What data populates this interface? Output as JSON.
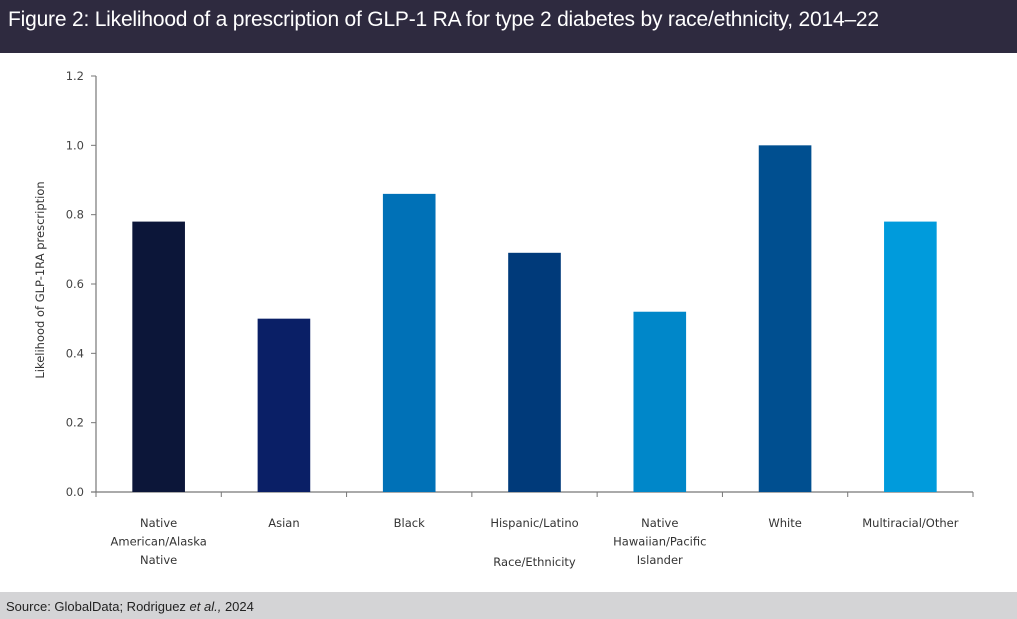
{
  "header": {
    "title": "Figure 2: Likelihood of a prescription of GLP-1 RA for type 2 diabetes by race/ethnicity, 2014–22"
  },
  "footer": {
    "source_prefix": "Source: GlobalData; Rodriguez ",
    "source_italic": "et al.,",
    "source_suffix": " 2024"
  },
  "colors": {
    "header_bg": "#2e2a3f",
    "footer_bg": "#d4d4d6"
  },
  "chart_data": {
    "type": "bar",
    "title": "Likelihood of a prescription of GLP-1 RA for type 2 diabetes by race/ethnicity, 2014–22",
    "xlabel": "Race/Ethnicity",
    "ylabel": "Likelihood of GLP-1RA prescription",
    "ylim": [
      0,
      1.2
    ],
    "yticks": [
      "0.0",
      "0.2",
      "0.4",
      "0.6",
      "0.8",
      "1.0",
      "1.2"
    ],
    "grid": false,
    "legend": "none",
    "categories": [
      [
        "Native",
        "American/Alaska",
        "Native"
      ],
      [
        "Asian"
      ],
      [
        "Black"
      ],
      [
        "Hispanic/Latino"
      ],
      [
        "Native",
        "Hawaiian/Pacific",
        "Islander"
      ],
      [
        "White"
      ],
      [
        "Multiracial/Other"
      ]
    ],
    "values": [
      0.78,
      0.5,
      0.86,
      0.69,
      0.52,
      1.0,
      0.78
    ],
    "bar_colors": [
      "#0c1639",
      "#0a1f66",
      "#0071b7",
      "#003a7a",
      "#0087c9",
      "#004f90",
      "#009bdc"
    ]
  }
}
